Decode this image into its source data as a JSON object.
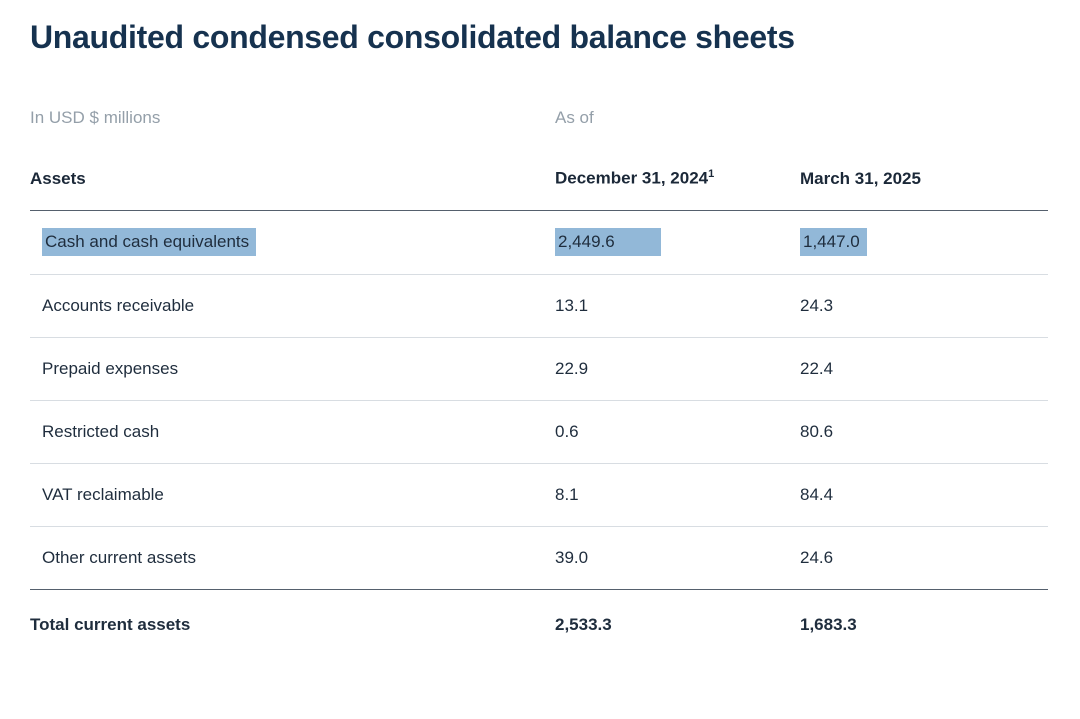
{
  "colors": {
    "title_text": "#16324f",
    "body_text": "#1f2d3d",
    "muted_text": "#949fa9",
    "highlight": "#92b8d8",
    "rule_light": "#d8dde2",
    "rule_dark": "#55606d"
  },
  "page": {
    "title": "Unaudited condensed consolidated balance sheets"
  },
  "table": {
    "unit_label": "In USD $ millions",
    "as_of_label": "As of",
    "section_header": "Assets",
    "columns": [
      {
        "label": "December 31, 2024",
        "footnote": "1"
      },
      {
        "label": "March 31, 2025"
      }
    ],
    "rows": [
      {
        "label": "Cash and cash equivalents",
        "dec_31_2024": "2,449.6",
        "mar_31_2025": "1,447.0",
        "highlighted": true
      },
      {
        "label": "Accounts receivable",
        "dec_31_2024": "13.1",
        "mar_31_2025": "24.3"
      },
      {
        "label": "Prepaid expenses",
        "dec_31_2024": "22.9",
        "mar_31_2025": "22.4"
      },
      {
        "label": "Restricted cash",
        "dec_31_2024": "0.6",
        "mar_31_2025": "80.6"
      },
      {
        "label": "VAT reclaimable",
        "dec_31_2024": "8.1",
        "mar_31_2025": "84.4"
      },
      {
        "label": "Other current assets",
        "dec_31_2024": "39.0",
        "mar_31_2025": "24.6"
      }
    ],
    "total_row": {
      "label": "Total current assets",
      "dec_31_2024": "2,533.3",
      "mar_31_2025": "1,683.3"
    }
  }
}
